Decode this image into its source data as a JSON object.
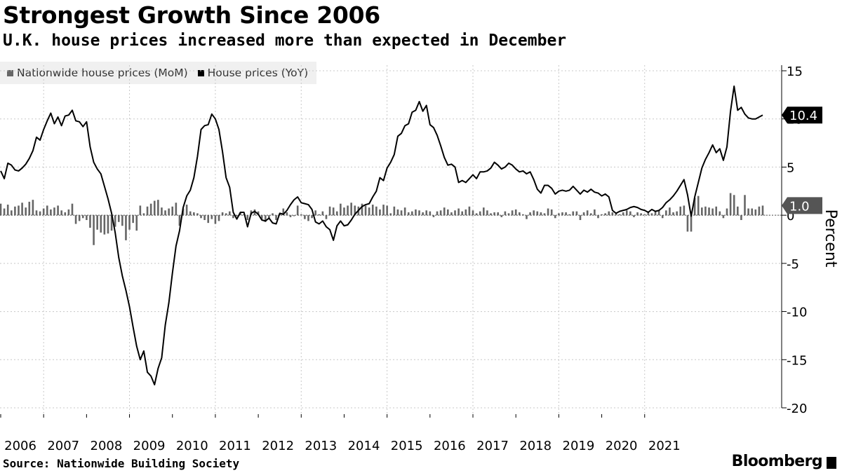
{
  "header": {
    "title": "Strongest Growth Since 2006",
    "subtitle": "U.K. house prices increased more than expected in December"
  },
  "legend": [
    {
      "label": "Nationwide house prices (MoM)",
      "color": "#666666"
    },
    {
      "label": "House prices (YoY)",
      "color": "#000000"
    }
  ],
  "footer": {
    "source": "Source: Nationwide Building Society",
    "brand": "Bloomberg"
  },
  "chart_data": {
    "type": "line",
    "title": "Strongest Growth Since 2006",
    "subtitle": "U.K. house prices increased more than expected in December",
    "ylabel": "Percent",
    "ylim": [
      -20,
      15
    ],
    "yticks": [
      15,
      10,
      5,
      0,
      -5,
      -10,
      -15,
      -20
    ],
    "ytick_labels": [
      "15",
      "10",
      "5",
      "0",
      "-5",
      "-10",
      "-15",
      "-20"
    ],
    "x_start": "2006-01",
    "x_end": "2021-12",
    "xticks": [
      "2006",
      "2007",
      "2008",
      "2009",
      "2010",
      "2011",
      "2012",
      "2013",
      "2014",
      "2015",
      "2016",
      "2017",
      "2018",
      "2019",
      "2020",
      "2021"
    ],
    "grid": true,
    "legend_position": "top-left",
    "last_value_labels": [
      {
        "series": "House prices (YoY)",
        "value": "10.4"
      },
      {
        "series": "Nationwide house prices (MoM)",
        "value": "1.0"
      }
    ],
    "series": [
      {
        "name": "Nationwide house prices (MoM)",
        "kind": "bar",
        "color": "#666666",
        "values": [
          1.2,
          0.7,
          1.1,
          0.5,
          0.9,
          1.0,
          1.3,
          0.8,
          1.4,
          1.6,
          0.5,
          0.4,
          0.7,
          1.0,
          0.6,
          0.8,
          1.0,
          0.5,
          0.3,
          0.6,
          1.2,
          -0.9,
          -0.6,
          -0.3,
          -0.5,
          -1.3,
          -3.1,
          -1.5,
          -1.8,
          -2.0,
          -1.9,
          -1.6,
          -1.2,
          -0.7,
          -1.1,
          -2.6,
          -1.5,
          -0.8,
          -1.6,
          1.0,
          0.2,
          0.9,
          1.2,
          1.5,
          1.6,
          0.8,
          0.5,
          0.7,
          0.9,
          1.3,
          -1.1,
          0.7,
          1.1,
          0.4,
          0.3,
          0.2,
          -0.3,
          -0.5,
          -0.8,
          -0.4,
          -0.9,
          -0.6,
          0.3,
          0.2,
          0.4,
          -0.3,
          -0.1,
          0.3,
          0.1,
          -0.5,
          0.5,
          0.6,
          0.4,
          -0.4,
          -0.7,
          -0.3,
          0.2,
          -0.5,
          0.1,
          0.7,
          0.3,
          -0.2,
          -0.1,
          1.0,
          0.1,
          -0.4,
          -0.6,
          -0.3,
          0.5,
          0.1,
          0.4,
          -0.4,
          0.9,
          0.8,
          0.4,
          1.2,
          0.8,
          1.0,
          1.3,
          1.0,
          0.9,
          1.2,
          1.0,
          0.8,
          1.1,
          0.9,
          0.6,
          1.1,
          1.0,
          0.2,
          0.9,
          0.6,
          0.5,
          0.8,
          0.3,
          0.4,
          0.6,
          0.5,
          0.3,
          0.5,
          0.4,
          -0.2,
          0.4,
          0.5,
          0.8,
          0.6,
          0.3,
          0.5,
          0.7,
          0.4,
          0.6,
          0.9,
          0.5,
          0.2,
          0.4,
          0.8,
          0.5,
          0.2,
          0.3,
          0.3,
          -0.2,
          0.4,
          0.2,
          0.5,
          0.6,
          0.3,
          0.1,
          -0.4,
          0.3,
          0.5,
          0.4,
          0.3,
          0.2,
          0.7,
          0.6,
          -0.3,
          0.2,
          0.3,
          0.3,
          0.1,
          0.4,
          0.4,
          -0.5,
          0.3,
          0.5,
          0.2,
          0.6,
          -0.3,
          0.1,
          0.2,
          0.4,
          0.3,
          0.2,
          0.1,
          0.3,
          0.5,
          0.4,
          -0.2,
          0.3,
          0.2,
          0.1,
          0.4,
          0.2,
          0.4,
          0.5,
          -0.3,
          0.5,
          0.8,
          0.3,
          0.4,
          0.9,
          1.0,
          -1.7,
          -1.7,
          1.8,
          2.0,
          0.8,
          0.9,
          0.8,
          0.7,
          0.9,
          0.4,
          -0.3,
          0.7,
          2.3,
          2.1,
          0.9,
          -0.5,
          2.1,
          0.7,
          0.7,
          0.6,
          0.9,
          1.0
        ]
      },
      {
        "name": "House prices (YoY)",
        "kind": "line",
        "color": "#000000",
        "values": [
          4.6,
          3.8,
          5.4,
          5.2,
          4.7,
          4.6,
          4.9,
          5.3,
          5.9,
          6.7,
          8.1,
          7.8,
          8.9,
          9.8,
          10.6,
          9.5,
          10.2,
          9.3,
          10.3,
          10.4,
          10.9,
          9.8,
          9.7,
          9.2,
          9.7,
          7.1,
          5.5,
          4.8,
          4.3,
          3.0,
          1.7,
          0.2,
          -1.8,
          -4.4,
          -6.3,
          -7.8,
          -9.5,
          -11.6,
          -13.6,
          -15.0,
          -14.1,
          -16.3,
          -16.7,
          -17.6,
          -15.9,
          -14.8,
          -11.4,
          -9.1,
          -6.0,
          -3.2,
          -1.6,
          0.8,
          2.0,
          2.6,
          3.9,
          6.1,
          8.9,
          9.3,
          9.4,
          10.5,
          10.0,
          8.9,
          6.6,
          3.9,
          2.9,
          0.3,
          -0.4,
          0.3,
          0.3,
          -1.2,
          0.2,
          0.4,
          0.1,
          -0.5,
          -0.6,
          -0.3,
          -0.8,
          -0.9,
          0.2,
          0.1,
          0.5,
          1.1,
          1.6,
          1.9,
          1.3,
          1.2,
          1.1,
          0.6,
          -0.7,
          -0.9,
          -0.6,
          -1.2,
          -1.5,
          -2.6,
          -1.1,
          -0.6,
          -1.1,
          -1.0,
          -0.5,
          0.1,
          0.5,
          0.9,
          1.1,
          1.2,
          1.9,
          2.5,
          3.9,
          3.6,
          4.9,
          5.5,
          6.3,
          8.2,
          8.5,
          9.3,
          9.5,
          10.7,
          10.9,
          11.8,
          10.8,
          11.4,
          9.4,
          9.1,
          8.3,
          7.2,
          6.0,
          5.2,
          5.3,
          5.0,
          3.4,
          3.6,
          3.4,
          3.8,
          4.2,
          3.8,
          4.5,
          4.5,
          4.6,
          4.9,
          5.5,
          5.2,
          4.8,
          5.0,
          5.4,
          5.2,
          4.8,
          4.5,
          4.6,
          4.3,
          4.5,
          3.7,
          2.7,
          2.3,
          3.1,
          3.1,
          2.8,
          2.2,
          2.5,
          2.6,
          2.5,
          2.6,
          3.0,
          2.6,
          2.2,
          2.6,
          2.4,
          2.7,
          2.4,
          2.3,
          2.0,
          2.2,
          1.9,
          0.5,
          0.2,
          0.4,
          0.5,
          0.6,
          0.8,
          0.9,
          0.8,
          0.6,
          0.5,
          0.3,
          0.6,
          0.4,
          0.5,
          0.8,
          1.3,
          1.6,
          2.0,
          2.5,
          3.1,
          3.7,
          2.1,
          -0.1,
          1.9,
          3.4,
          4.9,
          5.8,
          6.5,
          7.3,
          6.5,
          6.9,
          5.7,
          7.1,
          10.8,
          13.4,
          10.9,
          11.2,
          10.5,
          10.1,
          10.0,
          10.0,
          10.2,
          10.4
        ]
      }
    ]
  }
}
